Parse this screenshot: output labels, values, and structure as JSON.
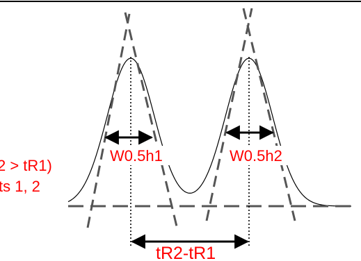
{
  "labels": {
    "width_peak1": "W0.5h1",
    "width_peak2": "W0.5h2",
    "retention_diff": "tR2-tR1",
    "side_line1": "2 > tR1)",
    "side_line2": "ts 1, 2"
  },
  "colors": {
    "label": "#ff0000",
    "curve": "#000000",
    "tangent": "#555555",
    "baseline": "#555555"
  }
}
